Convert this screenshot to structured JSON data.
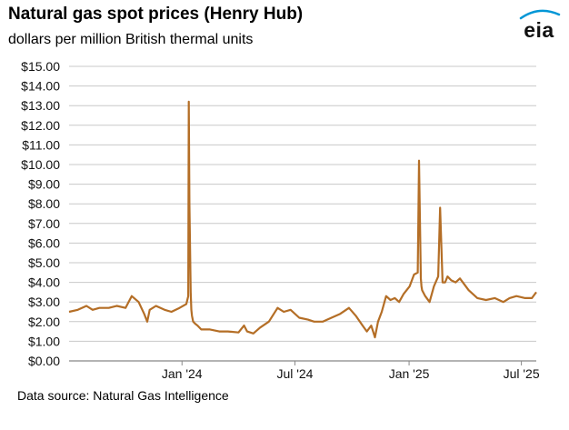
{
  "header": {
    "title": "Natural gas spot prices (Henry Hub)",
    "subtitle": "dollars per million British thermal units"
  },
  "footer": {
    "source": "Data source: Natural Gas Intelligence"
  },
  "logo": {
    "text": "eia",
    "icon": "eia-logo-icon",
    "accent_color": "#0096d6"
  },
  "chart_data": {
    "type": "line",
    "title": "Natural gas spot prices (Henry Hub)",
    "subtitle": "dollars per million British thermal units",
    "xlabel": "",
    "ylabel": "",
    "ylim": [
      0,
      15
    ],
    "xlim": [
      "2023-07-03",
      "2025-07-25"
    ],
    "grid": "horizontal",
    "line_color": "#b46e26",
    "y_ticks": [
      0,
      1,
      2,
      3,
      4,
      5,
      6,
      7,
      8,
      9,
      10,
      11,
      12,
      13,
      14,
      15
    ],
    "y_tick_labels": [
      "$0.00",
      "$1.00",
      "$2.00",
      "$3.00",
      "$4.00",
      "$5.00",
      "$6.00",
      "$7.00",
      "$8.00",
      "$9.00",
      "$10.00",
      "$11.00",
      "$12.00",
      "$13.00",
      "$14.00",
      "$15.00"
    ],
    "x_ticks": [
      "2024-01-01",
      "2024-07-01",
      "2025-01-01",
      "2025-07-01"
    ],
    "x_tick_labels": [
      "Jan '24",
      "Jul '24",
      "Jan '25",
      "Jul '25"
    ],
    "series": [
      {
        "x": [
          "2023-07-03",
          "2023-07-17",
          "2023-07-31",
          "2023-08-10",
          "2023-08-21",
          "2023-09-05",
          "2023-09-18",
          "2023-10-02",
          "2023-10-12",
          "2023-10-23",
          "2023-11-01",
          "2023-11-06",
          "2023-11-10",
          "2023-11-20",
          "2023-12-04",
          "2023-12-15",
          "2023-12-28",
          "2024-01-08",
          "2024-01-11",
          "2024-01-12",
          "2024-01-13",
          "2024-01-15",
          "2024-01-16",
          "2024-01-17",
          "2024-01-19",
          "2024-01-22",
          "2024-01-26",
          "2024-02-01",
          "2024-02-15",
          "2024-03-01",
          "2024-03-15",
          "2024-04-01",
          "2024-04-10",
          "2024-04-15",
          "2024-04-25",
          "2024-05-06",
          "2024-05-20",
          "2024-06-03",
          "2024-06-13",
          "2024-06-24",
          "2024-07-08",
          "2024-07-22",
          "2024-08-01",
          "2024-08-15",
          "2024-08-29",
          "2024-09-12",
          "2024-09-26",
          "2024-10-07",
          "2024-10-18",
          "2024-10-25",
          "2024-11-01",
          "2024-11-07",
          "2024-11-12",
          "2024-11-18",
          "2024-11-25",
          "2024-12-02",
          "2024-12-09",
          "2024-12-16",
          "2024-12-23",
          "2025-01-02",
          "2025-01-09",
          "2025-01-15",
          "2025-01-17",
          "2025-01-20",
          "2025-01-21",
          "2025-01-22",
          "2025-01-27",
          "2025-02-03",
          "2025-02-10",
          "2025-02-17",
          "2025-02-20",
          "2025-02-24",
          "2025-02-28",
          "2025-03-04",
          "2025-03-10",
          "2025-03-17",
          "2025-03-24",
          "2025-04-07",
          "2025-04-21",
          "2025-05-05",
          "2025-05-19",
          "2025-06-02",
          "2025-06-12",
          "2025-06-23",
          "2025-07-07",
          "2025-07-18",
          "2025-07-25"
        ],
        "values": [
          2.5,
          2.6,
          2.8,
          2.6,
          2.7,
          2.7,
          2.8,
          2.7,
          3.3,
          3.0,
          2.4,
          2.0,
          2.6,
          2.8,
          2.6,
          2.5,
          2.7,
          2.9,
          3.3,
          13.2,
          8.0,
          3.5,
          2.6,
          2.3,
          2.0,
          1.9,
          1.8,
          1.6,
          1.6,
          1.5,
          1.5,
          1.45,
          1.8,
          1.5,
          1.4,
          1.7,
          2.0,
          2.7,
          2.5,
          2.6,
          2.2,
          2.1,
          2.0,
          2.0,
          2.2,
          2.4,
          2.7,
          2.3,
          1.8,
          1.5,
          1.8,
          1.2,
          2.0,
          2.5,
          3.3,
          3.1,
          3.2,
          3.0,
          3.4,
          3.8,
          4.4,
          4.5,
          10.2,
          4.2,
          3.8,
          3.6,
          3.3,
          3.0,
          3.8,
          4.3,
          7.8,
          4.0,
          4.0,
          4.3,
          4.1,
          4.0,
          4.2,
          3.6,
          3.2,
          3.1,
          3.2,
          3.0,
          3.2,
          3.3,
          3.2,
          3.2,
          3.5
        ]
      }
    ]
  }
}
